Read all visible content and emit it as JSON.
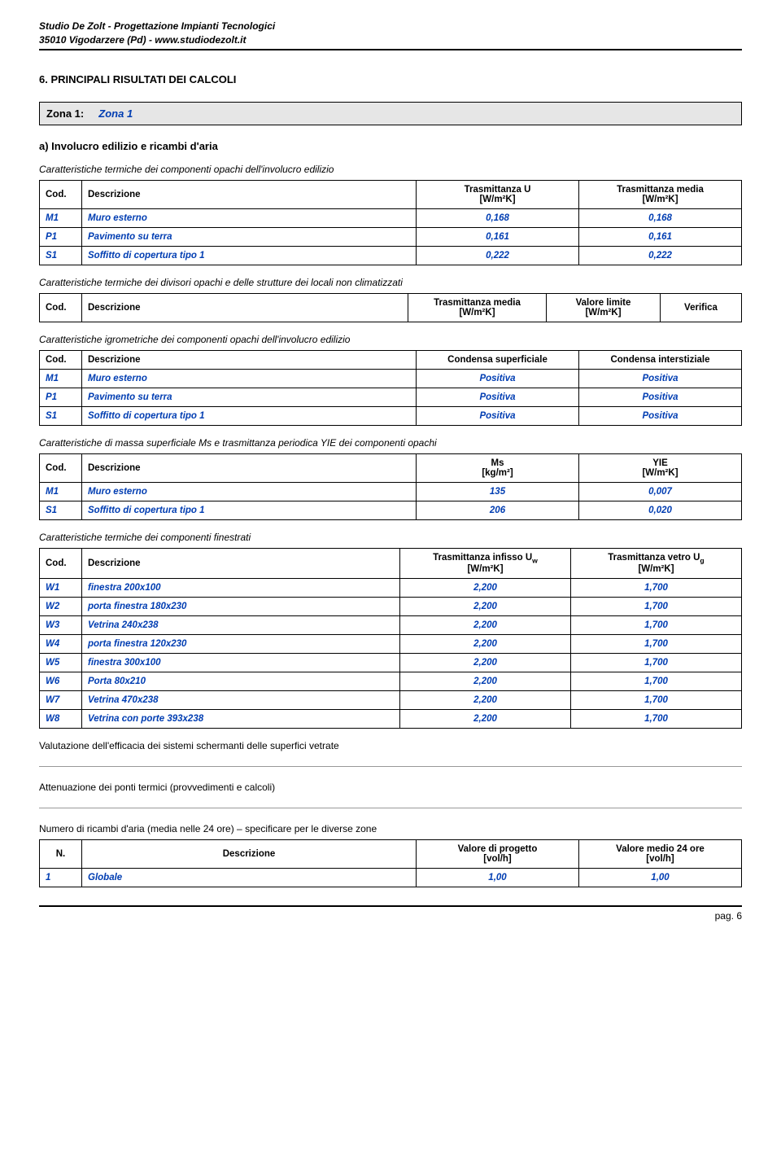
{
  "header": {
    "line1": "Studio De Zolt - Progettazione Impianti Tecnologici",
    "line2": "35010 Vigodarzere (Pd) - www.studiodezolt.it"
  },
  "section_title": "6.   PRINCIPALI RISULTATI DEI CALCOLI",
  "zone": {
    "label": "Zona 1:",
    "value": "Zona 1"
  },
  "sub_a": "a)   Involucro edilizio e ricambi d'aria",
  "intro1": "Caratteristiche termiche dei componenti opachi dell'involucro edilizio",
  "t1": {
    "h_cod": "Cod.",
    "h_desc": "Descrizione",
    "h_c1a": "Trasmittanza U",
    "h_c1b": "[W/m²K]",
    "h_c2a": "Trasmittanza media",
    "h_c2b": "[W/m²K]",
    "rows": [
      {
        "cod": "M1",
        "desc": "Muro esterno",
        "v1": "0,168",
        "v2": "0,168"
      },
      {
        "cod": "P1",
        "desc": "Pavimento su terra",
        "v1": "0,161",
        "v2": "0,161"
      },
      {
        "cod": "S1",
        "desc": "Soffitto di copertura tipo 1",
        "v1": "0,222",
        "v2": "0,222"
      }
    ]
  },
  "intro2": "Caratteristiche termiche dei divisori opachi e delle strutture dei locali non climatizzati",
  "t2": {
    "h_cod": "Cod.",
    "h_desc": "Descrizione",
    "h_c1a": "Trasmittanza media",
    "h_c1b": "[W/m²K]",
    "h_c2a": "Valore limite",
    "h_c2b": "[W/m²K]",
    "h_c3": "Verifica"
  },
  "intro3": "Caratteristiche igrometriche dei componenti opachi dell'involucro edilizio",
  "t3": {
    "h_cod": "Cod.",
    "h_desc": "Descrizione",
    "h_c1": "Condensa superficiale",
    "h_c2": "Condensa interstiziale",
    "rows": [
      {
        "cod": "M1",
        "desc": "Muro esterno",
        "v1": "Positiva",
        "v2": "Positiva"
      },
      {
        "cod": "P1",
        "desc": "Pavimento su terra",
        "v1": "Positiva",
        "v2": "Positiva"
      },
      {
        "cod": "S1",
        "desc": "Soffitto di copertura tipo 1",
        "v1": "Positiva",
        "v2": "Positiva"
      }
    ]
  },
  "intro4": "Caratteristiche di massa superficiale Ms e trasmittanza periodica YIE dei componenti opachi",
  "t4": {
    "h_cod": "Cod.",
    "h_desc": "Descrizione",
    "h_c1a": "Ms",
    "h_c1b": "[kg/m²]",
    "h_c2a": "YIE",
    "h_c2b": "[W/m²K]",
    "rows": [
      {
        "cod": "M1",
        "desc": "Muro esterno",
        "v1": "135",
        "v2": "0,007"
      },
      {
        "cod": "S1",
        "desc": "Soffitto di copertura tipo 1",
        "v1": "206",
        "v2": "0,020"
      }
    ]
  },
  "intro5": "Caratteristiche termiche dei componenti finestrati",
  "t5": {
    "h_cod": "Cod.",
    "h_desc": "Descrizione",
    "h_c1a": "Trasmittanza infisso U",
    "h_c1sub": "w",
    "h_c1b": "[W/m²K]",
    "h_c2a": "Trasmittanza vetro U",
    "h_c2sub": "g",
    "h_c2b": "[W/m²K]",
    "rows": [
      {
        "cod": "W1",
        "desc": "finestra 200x100",
        "v1": "2,200",
        "v2": "1,700"
      },
      {
        "cod": "W2",
        "desc": "porta finestra 180x230",
        "v1": "2,200",
        "v2": "1,700"
      },
      {
        "cod": "W3",
        "desc": "Vetrina 240x238",
        "v1": "2,200",
        "v2": "1,700"
      },
      {
        "cod": "W4",
        "desc": "porta finestra 120x230",
        "v1": "2,200",
        "v2": "1,700"
      },
      {
        "cod": "W5",
        "desc": "finestra 300x100",
        "v1": "2,200",
        "v2": "1,700"
      },
      {
        "cod": "W6",
        "desc": "Porta 80x210",
        "v1": "2,200",
        "v2": "1,700"
      },
      {
        "cod": "W7",
        "desc": "Vetrina 470x238",
        "v1": "2,200",
        "v2": "1,700"
      },
      {
        "cod": "W8",
        "desc": "Vetrina con porte 393x238",
        "v1": "2,200",
        "v2": "1,700"
      }
    ]
  },
  "note1": "Valutazione dell'efficacia dei sistemi schermanti delle superfici vetrate",
  "note2": "Attenuazione dei ponti termici (provvedimenti e calcoli)",
  "note3": "Numero di ricambi d'aria (media nelle 24 ore) – specificare per le diverse zone",
  "t6": {
    "h_n": "N.",
    "h_desc": "Descrizione",
    "h_c1a": "Valore di progetto",
    "h_c1b": "[vol/h]",
    "h_c2a": "Valore medio 24 ore",
    "h_c2b": "[vol/h]",
    "rows": [
      {
        "n": "1",
        "desc": "Globale",
        "v1": "1,00",
        "v2": "1,00"
      }
    ]
  },
  "footer": {
    "page": "pag. 6"
  }
}
